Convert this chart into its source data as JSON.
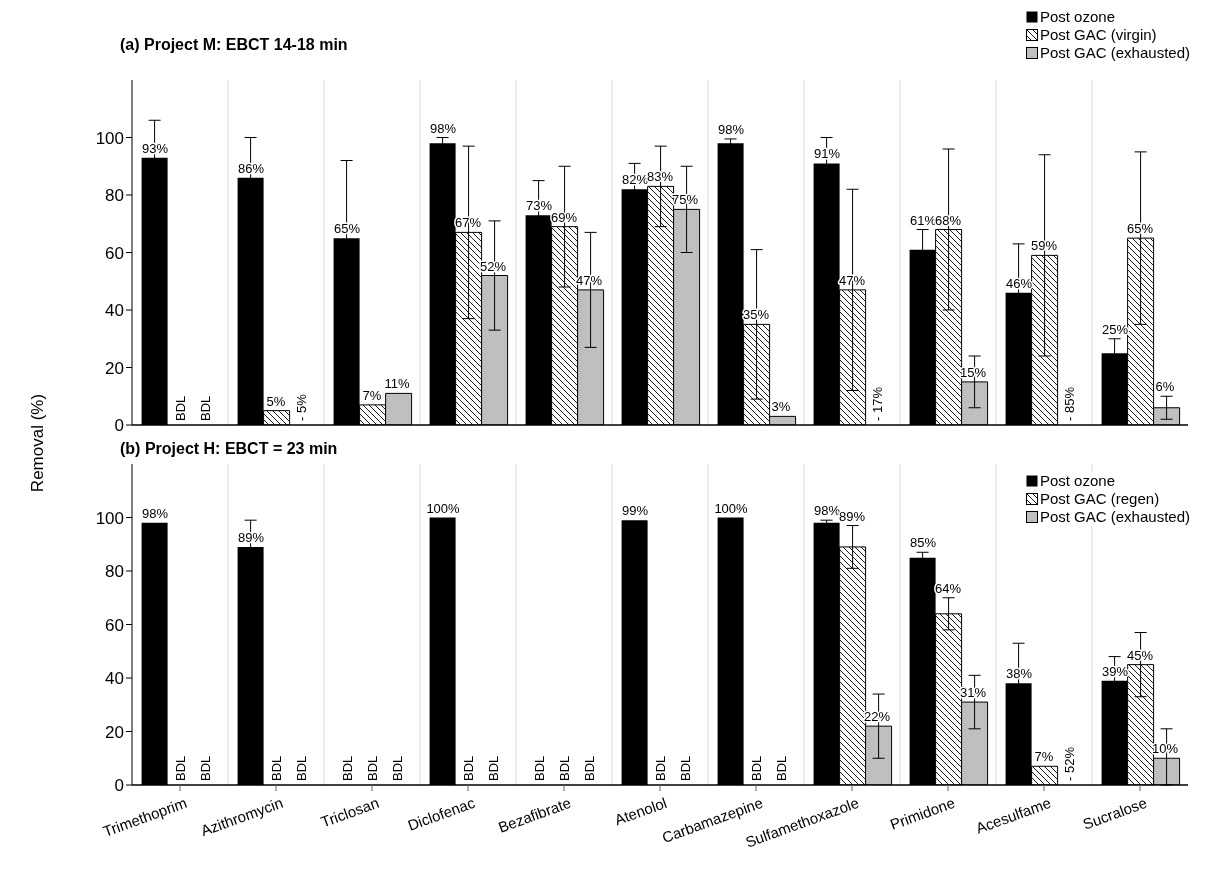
{
  "chart_data": [
    {
      "type": "bar",
      "title": "(a) Project M: EBCT 14-18 min",
      "ylabel": "Removal (%)",
      "categories": [
        null,
        null,
        null,
        null,
        null,
        null,
        null,
        null,
        null,
        null,
        null
      ],
      "series": [
        {
          "name": "Post ozone",
          "color": "#000000",
          "values": [
            93,
            86,
            65,
            98,
            73,
            82,
            98,
            91,
            61,
            46,
            25
          ],
          "errors": [
            13,
            14,
            27,
            2,
            12,
            9,
            1.5,
            9,
            7,
            17,
            5
          ],
          "value_labels": [
            "93%",
            "86%",
            "65%",
            "98%",
            "73%",
            "82%",
            "98%",
            "91%",
            "61%",
            "46%",
            "25%"
          ]
        },
        {
          "name": "Post GAC (virgin)",
          "color": "#000000",
          "values": [
            null,
            5,
            7,
            67,
            69,
            83,
            35,
            47,
            68,
            59,
            65
          ],
          "errors": [
            null,
            null,
            null,
            30,
            21,
            14,
            26,
            35,
            28,
            35,
            30
          ],
          "value_labels": [
            "BDL",
            "5%",
            "7%",
            "67%",
            "69%",
            "83%",
            "35%",
            "47%",
            "68%",
            "59%",
            "65%"
          ]
        },
        {
          "name": "Post GAC (exhausted)",
          "color": "#bfbfbf",
          "values": [
            null,
            null,
            11,
            52,
            47,
            75,
            3,
            null,
            15,
            null,
            6
          ],
          "errors": [
            null,
            null,
            null,
            19,
            20,
            15,
            null,
            null,
            9,
            null,
            4
          ],
          "value_labels": [
            "BDL",
            "- 5%",
            "11%",
            "52%",
            "47%",
            "75%",
            "3%",
            "- 17%",
            "15%",
            "- 85%",
            "6%"
          ]
        }
      ],
      "ylim": [
        0,
        120
      ],
      "yticks": [
        0,
        20,
        40,
        60,
        80,
        100
      ],
      "grid": "x",
      "legend": "top right",
      "tick_labels": "y"
    },
    {
      "type": "bar",
      "title": "(b) Project H: EBCT = 23 min",
      "categories": [
        "Trimethoprim",
        "Azithromycin",
        "Triclosan",
        "Diclofenac",
        "Bezafibrate",
        "Atenolol",
        "Carbamazepine",
        "Sulfamethoxazole",
        "Primidone",
        "Acesulfame",
        "Sucralose"
      ],
      "series": [
        {
          "name": "Post ozone",
          "color": "#000000",
          "values": [
            98,
            89,
            null,
            100,
            null,
            99,
            100,
            98,
            85,
            38,
            39
          ],
          "errors": [
            null,
            10,
            null,
            null,
            null,
            null,
            null,
            1,
            2,
            15,
            9
          ],
          "value_labels": [
            "98%",
            "89%",
            "BDL",
            "100%",
            "BDL",
            "99%",
            "100%",
            "98%",
            "85%",
            "38%",
            "39%"
          ]
        },
        {
          "name": "Post GAC (regen)",
          "color": "#000000",
          "values": [
            null,
            null,
            null,
            null,
            null,
            null,
            null,
            89,
            64,
            7,
            45
          ],
          "errors": [
            null,
            null,
            null,
            null,
            null,
            null,
            null,
            8,
            6,
            null,
            12
          ],
          "value_labels": [
            "BDL",
            "BDL",
            "BDL",
            "BDL",
            "BDL",
            "BDL",
            "BDL",
            "89%",
            "64%",
            "7%",
            "45%"
          ]
        },
        {
          "name": "Post GAC (exhausted)",
          "color": "#bfbfbf",
          "values": [
            null,
            null,
            null,
            null,
            null,
            null,
            null,
            22,
            31,
            null,
            10
          ],
          "errors": [
            null,
            null,
            null,
            null,
            null,
            null,
            null,
            12,
            10,
            null,
            [
              0,
              21
            ]
          ],
          "value_labels": [
            "BDL",
            "BDL",
            "BDL",
            "BDL",
            "BDL",
            "BDL",
            "BDL",
            "22%",
            "31%",
            "- 52%",
            "10%"
          ]
        }
      ],
      "ylim": [
        0,
        120
      ],
      "yticks": [
        0,
        20,
        40,
        60,
        80,
        100
      ],
      "grid": "x",
      "legend": "top right"
    }
  ]
}
